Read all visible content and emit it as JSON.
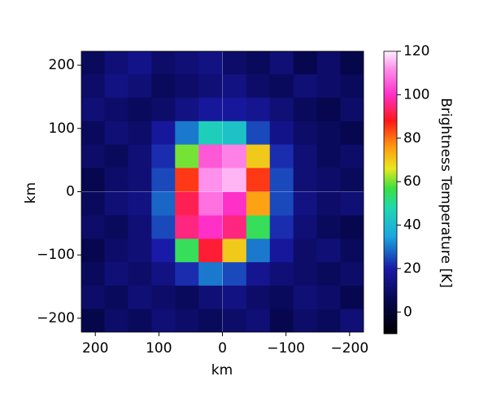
{
  "chart_data": {
    "type": "heatmap",
    "xlabel": "km",
    "ylabel": "km",
    "colorbar_label": "Brightness Temperature [K]",
    "x": [
      204,
      167,
      130,
      93,
      56,
      19,
      -19,
      -56,
      -93,
      -130,
      -167,
      -204
    ],
    "y": [
      204,
      167,
      130,
      93,
      56,
      19,
      -19,
      -56,
      -93,
      -130,
      -167,
      -204
    ],
    "z": [
      [
        8,
        12,
        15,
        10,
        12,
        14,
        10,
        8,
        12,
        6,
        10,
        5
      ],
      [
        10,
        14,
        12,
        8,
        10,
        12,
        14,
        10,
        8,
        12,
        10,
        8
      ],
      [
        12,
        10,
        8,
        10,
        14,
        18,
        18,
        16,
        12,
        8,
        6,
        10
      ],
      [
        8,
        12,
        10,
        18,
        30,
        45,
        42,
        25,
        15,
        10,
        8,
        6
      ],
      [
        10,
        8,
        12,
        22,
        60,
        105,
        110,
        70,
        22,
        12,
        8,
        10
      ],
      [
        6,
        10,
        12,
        25,
        85,
        112,
        115,
        85,
        25,
        12,
        10,
        8
      ],
      [
        8,
        12,
        14,
        28,
        92,
        108,
        100,
        75,
        25,
        14,
        10,
        12
      ],
      [
        10,
        8,
        12,
        25,
        95,
        100,
        95,
        55,
        22,
        12,
        8,
        6
      ],
      [
        6,
        10,
        12,
        20,
        55,
        90,
        70,
        30,
        18,
        10,
        12,
        8
      ],
      [
        8,
        12,
        10,
        14,
        22,
        30,
        25,
        16,
        12,
        10,
        8,
        10
      ],
      [
        10,
        8,
        12,
        10,
        8,
        12,
        14,
        10,
        8,
        12,
        10,
        6
      ],
      [
        5,
        10,
        8,
        12,
        10,
        8,
        10,
        12,
        6,
        10,
        8,
        12
      ]
    ],
    "xlim": [
      222,
      -222
    ],
    "ylim": [
      -222,
      222
    ],
    "xticks": [
      200,
      100,
      0,
      {
        "value": -100,
        "label": "−100"
      },
      {
        "value": -200,
        "label": "−200"
      }
    ],
    "yticks": [
      200,
      100,
      0,
      {
        "value": -100,
        "label": "−100"
      },
      {
        "value": -200,
        "label": "−200"
      }
    ],
    "clim": [
      -10,
      120
    ],
    "cticks": [
      0,
      20,
      40,
      60,
      80,
      100,
      120
    ],
    "colormap": [
      {
        "value": -10,
        "color": "#000000"
      },
      {
        "value": 5,
        "color": "#06064a"
      },
      {
        "value": 20,
        "color": "#1a1aa8"
      },
      {
        "value": 35,
        "color": "#1aa8e0"
      },
      {
        "value": 48,
        "color": "#20d8b0"
      },
      {
        "value": 57,
        "color": "#3ce040"
      },
      {
        "value": 66,
        "color": "#e8e820"
      },
      {
        "value": 76,
        "color": "#ff9a10"
      },
      {
        "value": 88,
        "color": "#ff1818"
      },
      {
        "value": 100,
        "color": "#ff30c8"
      },
      {
        "value": 112,
        "color": "#ff90ec"
      },
      {
        "value": 120,
        "color": "#fff0ff"
      }
    ]
  }
}
